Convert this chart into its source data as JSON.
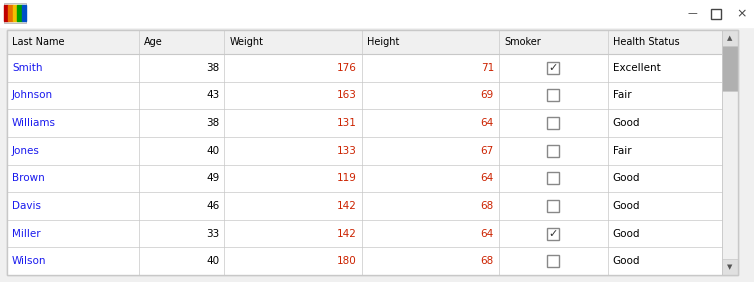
{
  "columns": [
    "Last Name",
    "Age",
    "Weight",
    "Height",
    "Smoker",
    "Health Status"
  ],
  "rows": [
    [
      "Smith",
      38,
      176,
      71,
      true,
      "Excellent"
    ],
    [
      "Johnson",
      43,
      163,
      69,
      false,
      "Fair"
    ],
    [
      "Williams",
      38,
      131,
      64,
      false,
      "Good"
    ],
    [
      "Jones",
      40,
      133,
      67,
      false,
      "Fair"
    ],
    [
      "Brown",
      49,
      119,
      64,
      false,
      "Good"
    ],
    [
      "Davis",
      46,
      142,
      68,
      false,
      "Good"
    ],
    [
      "Miller",
      33,
      142,
      64,
      true,
      "Good"
    ],
    [
      "Wilson",
      40,
      180,
      68,
      false,
      "Good"
    ]
  ],
  "header_color": "#f0f0f0",
  "row_color_odd": "#ffffff",
  "row_color_even": "#eff3fb",
  "header_text_color": "#000000",
  "name_text_color": "#1a1aee",
  "number_text_color": "#cc2200",
  "status_text_color": "#000000",
  "border_color": "#c8c8c8",
  "window_bg": "#f0f0f0",
  "fig_width": 7.54,
  "fig_height": 2.82
}
